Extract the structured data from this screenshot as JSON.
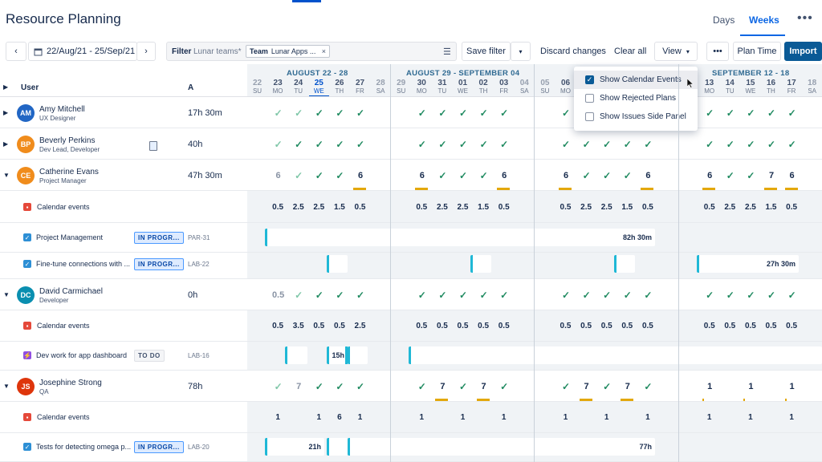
{
  "header": {
    "title": "Resource Planning",
    "tabs": [
      "Days",
      "Weeks"
    ],
    "active_tab": "Weeks",
    "more": "•••"
  },
  "toolbar": {
    "date_range": "22/Aug/21 - 25/Sep/21",
    "filter_label": "Filter",
    "filter_team_label": "Lunar teams*",
    "chip_label": "Team",
    "chip_value": "Lunar Apps ...",
    "save_filter": "Save filter",
    "discard": "Discard changes",
    "clear": "Clear all",
    "view": "View",
    "more": "•••",
    "plan_time": "Plan Time",
    "import": "Import"
  },
  "columns": {
    "user": "User",
    "a": "A"
  },
  "weeks": [
    "AUGUST 22 - 28",
    "AUGUST 29 - SEPTEMBER 04",
    "SEPTEMBER 12 - 18"
  ],
  "days": [
    {
      "n": "22",
      "d": "SU"
    },
    {
      "n": "23",
      "d": "MO"
    },
    {
      "n": "24",
      "d": "TU"
    },
    {
      "n": "25",
      "d": "WE"
    },
    {
      "n": "26",
      "d": "TH"
    },
    {
      "n": "27",
      "d": "FR"
    },
    {
      "n": "28",
      "d": "SA"
    },
    {
      "n": "29",
      "d": "SU"
    },
    {
      "n": "30",
      "d": "MO"
    },
    {
      "n": "31",
      "d": "TU"
    },
    {
      "n": "01",
      "d": "WE"
    },
    {
      "n": "02",
      "d": "TH"
    },
    {
      "n": "03",
      "d": "FR"
    },
    {
      "n": "04",
      "d": "SA"
    },
    {
      "n": "05",
      "d": "SU"
    },
    {
      "n": "06",
      "d": "MO"
    },
    {
      "n": "07",
      "d": "TU"
    },
    {
      "n": "08",
      "d": "WE"
    },
    {
      "n": "09",
      "d": "TH"
    },
    {
      "n": "10",
      "d": "FR"
    },
    {
      "n": "11",
      "d": "SA"
    },
    {
      "n": "12",
      "d": "SU"
    },
    {
      "n": "13",
      "d": "MO"
    },
    {
      "n": "14",
      "d": "TU"
    },
    {
      "n": "15",
      "d": "WE"
    },
    {
      "n": "16",
      "d": "TH"
    },
    {
      "n": "17",
      "d": "FR"
    },
    {
      "n": "18",
      "d": "SA"
    }
  ],
  "users": [
    {
      "initials": "AM",
      "name": "Amy Mitchell",
      "role": "UX Designer",
      "hours": "17h 30m",
      "color": "#2166c4"
    },
    {
      "initials": "BP",
      "name": "Beverly Perkins",
      "role": "Dev Lead, Developer",
      "hours": "40h",
      "color": "#f08c1c"
    },
    {
      "initials": "CE",
      "name": "Catherine Evans",
      "role": "Project Manager",
      "hours": "47h 30m",
      "color": "#f08c1c"
    },
    {
      "initials": "DC",
      "name": "David Carmichael",
      "role": "Developer",
      "hours": "0h",
      "color": "#0a8fb0"
    },
    {
      "initials": "JS",
      "name": "Josephine Strong",
      "role": "QA",
      "hours": "78h",
      "color": "#de350b"
    }
  ],
  "rows": {
    "amy": {
      "cells": [
        "",
        "✓l",
        "✓l",
        "✓",
        "✓",
        "✓",
        "",
        "",
        "✓",
        "✓",
        "✓",
        "✓",
        "✓",
        "",
        "",
        "✓",
        "✓",
        "✓",
        "✓",
        "✓",
        "",
        "",
        "✓",
        "✓",
        "✓",
        "✓",
        "✓",
        ""
      ]
    },
    "beverly": {
      "cells": [
        "",
        "✓l",
        "✓",
        "✓",
        "✓",
        "✓",
        "",
        "",
        "✓",
        "✓",
        "✓",
        "✓",
        "✓",
        "",
        "",
        "✓",
        "✓",
        "✓",
        "✓",
        "✓",
        "",
        "",
        "✓",
        "✓",
        "✓",
        "✓",
        "✓",
        ""
      ]
    },
    "catherine": {
      "cells": [
        "",
        "6g",
        "✓l",
        "✓",
        "✓",
        "6",
        "",
        "",
        "6",
        "✓",
        "✓",
        "✓",
        "6",
        "",
        "",
        "6",
        "✓",
        "✓",
        "✓",
        "6",
        "",
        "",
        "6",
        "✓",
        "✓",
        "7",
        "6",
        ""
      ]
    },
    "catherine_events": [
      "",
      "0.5",
      "2.5",
      "2.5",
      "1.5",
      "0.5",
      "",
      "",
      "0.5",
      "2.5",
      "2.5",
      "1.5",
      "0.5",
      "",
      "",
      "0.5",
      "2.5",
      "2.5",
      "1.5",
      "0.5",
      "",
      "",
      "0.5",
      "2.5",
      "2.5",
      "1.5",
      "0.5",
      ""
    ],
    "david": {
      "cells": [
        "",
        "0.5g",
        "✓l",
        "✓",
        "✓",
        "✓",
        "",
        "",
        "✓",
        "✓",
        "✓",
        "✓",
        "✓",
        "",
        "",
        "✓",
        "✓",
        "✓",
        "✓",
        "✓",
        "",
        "",
        "✓",
        "✓",
        "✓",
        "✓",
        "✓",
        ""
      ]
    },
    "david_events": [
      "",
      "0.5",
      "3.5",
      "0.5",
      "0.5",
      "2.5",
      "",
      "",
      "0.5",
      "0.5",
      "0.5",
      "0.5",
      "0.5",
      "",
      "",
      "0.5",
      "0.5",
      "0.5",
      "0.5",
      "0.5",
      "",
      "",
      "0.5",
      "0.5",
      "0.5",
      "0.5",
      "0.5",
      ""
    ],
    "josephine": {
      "cells": [
        "",
        "✓l",
        "7g",
        "✓",
        "✓",
        "✓",
        "",
        "",
        "✓",
        "7",
        "✓",
        "7",
        "✓",
        "",
        "",
        "✓",
        "7",
        "✓",
        "7",
        "✓",
        "",
        "",
        "1",
        "",
        "1",
        "",
        "1",
        ""
      ]
    },
    "josephine_events": [
      "",
      "1",
      "",
      "1",
      "6",
      "1",
      "",
      "",
      "1",
      "",
      "1",
      "",
      "1",
      "",
      "",
      "1",
      "",
      "1",
      "",
      "1",
      "",
      "",
      "1",
      "",
      "1",
      "",
      "1",
      ""
    ]
  },
  "tasks": {
    "calendar_events": "Calendar events",
    "project_mgmt": {
      "name": "Project Management",
      "status": "IN PROGR...",
      "key": "PAR-31",
      "bar": "82h 30m"
    },
    "fine_tune": {
      "name": "Fine-tune connections with ...",
      "status": "IN PROGR...",
      "key": "LAB-22",
      "bar": "27h 30m"
    },
    "dev_work": {
      "name": "Dev work for app dashboard",
      "status": "TO DO",
      "key": "LAB-16",
      "bar": "15h"
    },
    "tests": {
      "name": "Tests for detecting omega p...",
      "status": "IN PROGR...",
      "key": "LAB-20",
      "bar1": "21h",
      "bar2": "77h"
    }
  },
  "view_menu": {
    "items": [
      {
        "label": "Show Calendar Events",
        "checked": true
      },
      {
        "label": "Show Rejected Plans",
        "checked": false
      },
      {
        "label": "Show Issues Side Panel",
        "checked": false
      }
    ]
  },
  "colors": {
    "accent": "#0b66e4",
    "import_bg": "#0a5a96",
    "check": "#1f8a60",
    "bar": "#1fb8d6",
    "overtime": "#e3a80c"
  }
}
